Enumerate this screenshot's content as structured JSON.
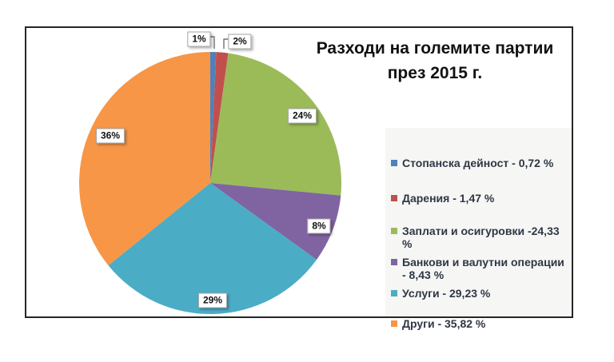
{
  "title": {
    "line1": "Разходи на големите партии",
    "line2": "през 2015 г."
  },
  "chart_data": {
    "type": "pie",
    "title": "Разходи на големите партии през 2015 г.",
    "categories": [
      "Стопанска дейност",
      "Дарения",
      "Заплати и осигуровки",
      "Банкови и валутни операции",
      "Услуги",
      "Други"
    ],
    "values": [
      0.72,
      1.47,
      24.33,
      8.43,
      29.23,
      35.82
    ],
    "colors": [
      "#4f81bd",
      "#c0504d",
      "#9bbb59",
      "#8064a2",
      "#4bacc6",
      "#f79646"
    ],
    "slice_labels": {
      "s0": "1%",
      "s1": "2%",
      "s2": "24%",
      "s3": "8%",
      "s4": "29%",
      "s5": "36%"
    },
    "start_angle_deg": 0,
    "direction": "clockwise",
    "legend_position": "right",
    "grid": false
  },
  "legend": {
    "items": [
      {
        "label": "Стопанска дейност - 0,72 %",
        "color": "#4f81bd"
      },
      {
        "label": "Дарения - 1,47 %",
        "color": "#c0504d"
      },
      {
        "label": "Заплати и осигуровки -24,33 %",
        "color": "#9bbb59"
      },
      {
        "label": "Банкови и валутни операции - 8,43 %",
        "color": "#8064a2"
      },
      {
        "label": "Услуги - 29,23 %",
        "color": "#4bacc6"
      },
      {
        "label": "Други - 35,82 %",
        "color": "#f79646"
      }
    ]
  }
}
